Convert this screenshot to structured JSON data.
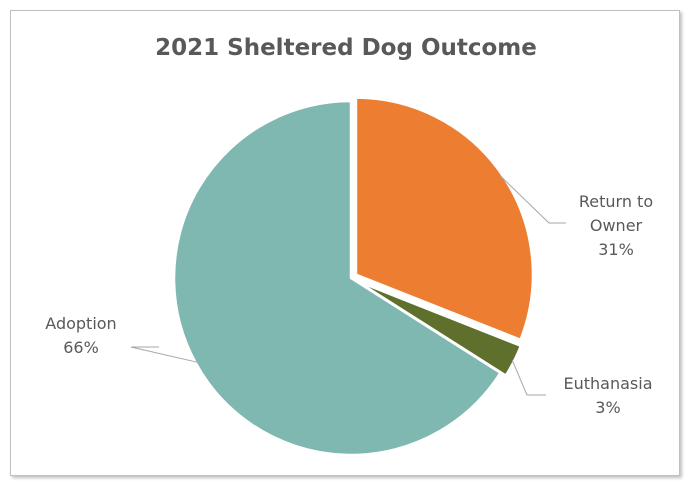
{
  "chart_data": {
    "type": "pie",
    "title": "2021 Sheltered Dog Outcome",
    "slices": [
      {
        "label": "Return to Owner",
        "label_lines": [
          "Return to",
          "Owner"
        ],
        "value": 31,
        "display": "31%",
        "color": "#ED7D31"
      },
      {
        "label": "Euthanasia",
        "label_lines": [
          "Euthanasia"
        ],
        "value": 3,
        "display": "3%",
        "color": "#5E702C"
      },
      {
        "label": "Adoption",
        "label_lines": [
          "Adoption"
        ],
        "value": 66,
        "display": "66%",
        "color": "#7EB8B1"
      }
    ],
    "start_angle_deg": 0,
    "legend": "none",
    "data_labels": "outside with leader lines"
  }
}
